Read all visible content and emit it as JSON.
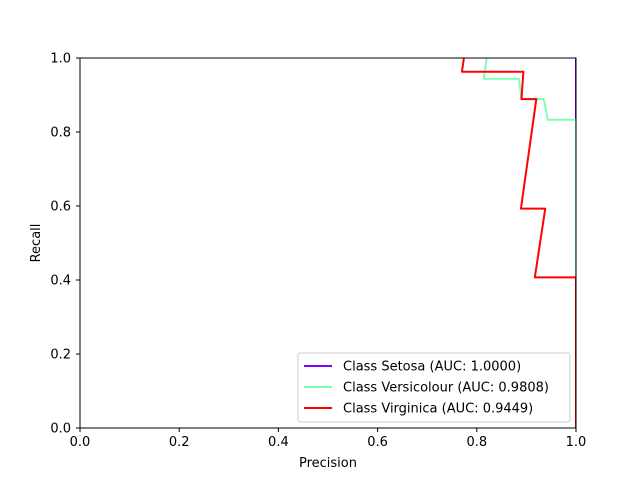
{
  "chart_data": {
    "type": "line",
    "title": "",
    "xlabel": "Precision",
    "ylabel": "Recall",
    "xlim": [
      0.0,
      1.0
    ],
    "ylim": [
      0.0,
      1.0
    ],
    "xticks": [
      "0.0",
      "0.2",
      "0.4",
      "0.6",
      "0.8",
      "1.0"
    ],
    "yticks": [
      "0.0",
      "0.2",
      "0.4",
      "0.6",
      "0.8",
      "1.0"
    ],
    "grid": false,
    "legend_position": "lower-right",
    "series": [
      {
        "name": "Class Setosa (AUC: 1.0000)",
        "color": "#8000ff",
        "x": [
          1.0,
          1.0
        ],
        "y": [
          0.0,
          1.0
        ]
      },
      {
        "name": "Class Versicolour (AUC: 0.9808)",
        "color": "#80ffb4",
        "x": [
          1.0,
          1.0,
          0.943,
          0.935,
          0.89,
          0.885,
          0.814,
          0.82
        ],
        "y": [
          0.0,
          0.833,
          0.833,
          0.889,
          0.889,
          0.944,
          0.944,
          1.0
        ]
      },
      {
        "name": "Class Virginica (AUC: 0.9449)",
        "color": "#ff0000",
        "x": [
          1.0,
          1.0,
          0.917,
          0.938,
          0.889,
          0.92,
          0.89,
          0.894,
          0.77,
          0.774
        ],
        "y": [
          0.0,
          0.407,
          0.407,
          0.593,
          0.593,
          0.889,
          0.889,
          0.963,
          0.963,
          1.0
        ]
      }
    ]
  }
}
